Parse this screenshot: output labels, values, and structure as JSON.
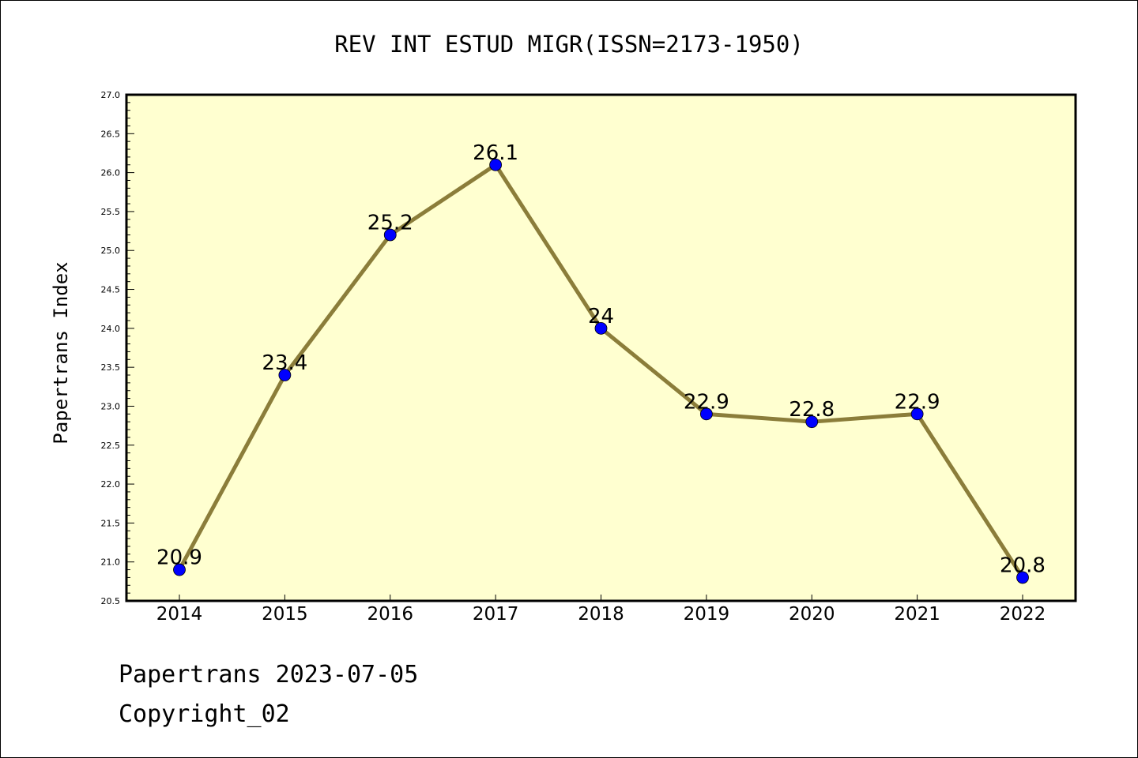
{
  "chart_data": {
    "type": "line",
    "title": "REV INT ESTUD MIGR(ISSN=2173-1950)",
    "xlabel": "",
    "ylabel": "Papertrans Index",
    "categories": [
      "2014",
      "2015",
      "2016",
      "2017",
      "2018",
      "2019",
      "2020",
      "2021",
      "2022"
    ],
    "series": [
      {
        "values": [
          20.9,
          23.4,
          25.2,
          26.1,
          24.0,
          22.9,
          22.8,
          22.9,
          20.8
        ],
        "data_labels": [
          "20.9",
          "23.4",
          "25.2",
          "26.1",
          "24",
          "22.9",
          "22.8",
          "22.9",
          "20.8"
        ],
        "line_color": "#8B7D3A",
        "marker_color": "#0000FF"
      }
    ],
    "ylim": [
      20.5,
      27.0
    ],
    "yticks": [
      "20.5",
      "21.0",
      "21.5",
      "22.0",
      "22.5",
      "23.0",
      "23.5",
      "24.0",
      "24.5",
      "25.0",
      "25.5",
      "26.0",
      "26.5",
      "27.0"
    ],
    "plot_background": "#FFFFD0",
    "grid": false,
    "legend": "none"
  },
  "footer": {
    "date_line": "Papertrans 2023-07-05",
    "copyright_line": "Copyright_02"
  }
}
